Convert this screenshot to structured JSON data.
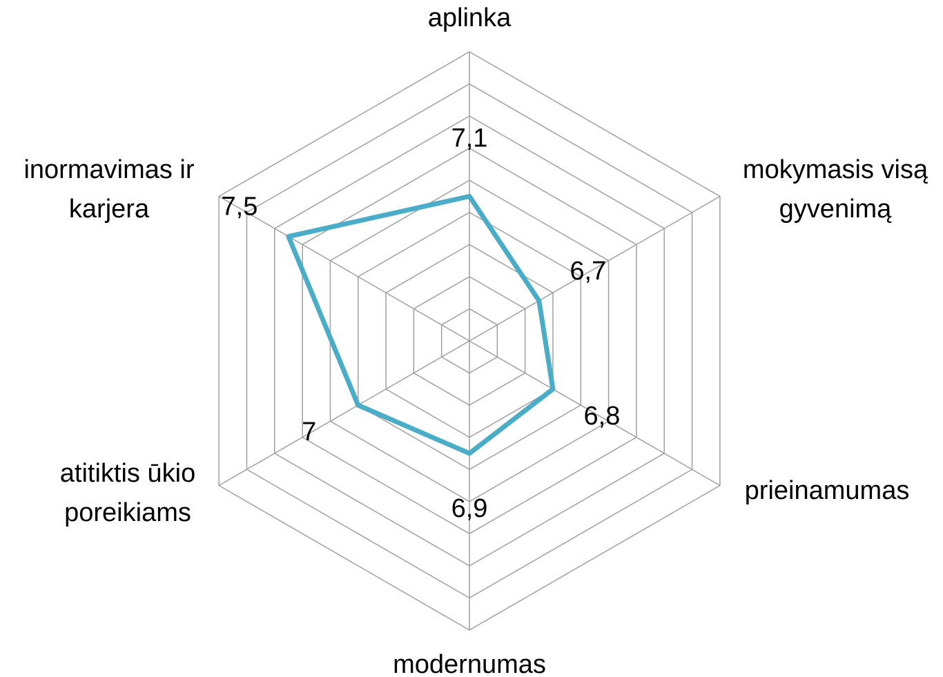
{
  "chart_data": {
    "type": "radar",
    "categories": [
      "aplinka",
      "mokymasis visą\ngyvenimą",
      "prieinamumas",
      "modernumas",
      "atitiktis ūkio\nporeikiams",
      "inormavimas ir\nkarjera"
    ],
    "values": [
      7.1,
      6.7,
      6.8,
      6.9,
      7,
      7.5
    ],
    "value_labels": [
      "7,1",
      "6,7",
      "6,8",
      "6,9",
      "7",
      "7,5"
    ],
    "color": "#4aacc6",
    "rlim": [
      6.2,
      8.0
    ],
    "rticks": [
      6.2,
      6.4,
      6.6,
      6.8,
      7.0,
      7.2,
      7.4,
      7.6,
      7.8,
      8.0
    ],
    "grid": true
  }
}
